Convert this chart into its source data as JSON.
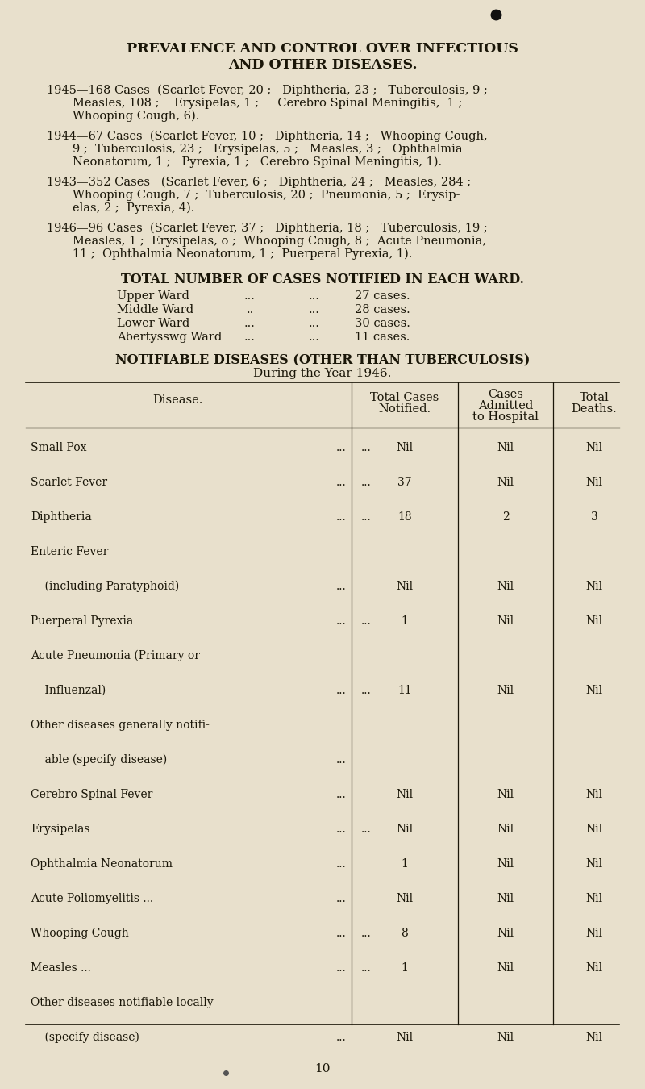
{
  "bg_color": "#e8e0cc",
  "text_color": "#1a1608",
  "title_line1": "PREVALENCE AND CONTROL OVER INFECTIOUS",
  "title_line2": "AND OTHER DISEASES.",
  "ward_title": "TOTAL NUMBER OF CASES NOTIFIED IN EACH WARD.",
  "notif_title1": "NOTIFIABLE DISEASES (OTHER THAN TUBERCULOSIS)",
  "notif_title2": "During the Year 1946.",
  "page_number": "10",
  "figsize": [
    8.0,
    13.5
  ],
  "dpi": 100
}
